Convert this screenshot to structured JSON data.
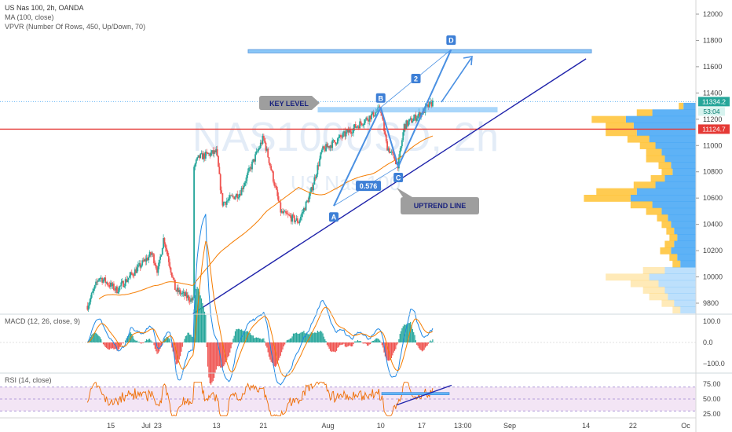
{
  "header": {
    "symbol_line": "US Nas 100, 2h, OANDA",
    "ma_line": "MA (100, close)",
    "vpvr_line": "VPVR (Number Of Rows, 450, Up/Down, 70)",
    "watermark_symbol": "NAS100USD, 2h",
    "watermark_desc": "US Nas 100"
  },
  "colors": {
    "up": "#26a69a",
    "down": "#ef5350",
    "ma": "#f57c00",
    "trend": "#1e22aa",
    "pattern": "#4a90e2",
    "zone": "#64b5f6",
    "red_line": "#e53935",
    "vp_up": "#42a5f5",
    "vp_down": "#ffc233"
  },
  "chart_data": [
    {
      "type": "candlestick",
      "title": "US Nas 100, 2h, OANDA",
      "ylim": [
        9700,
        12100
      ],
      "y_ticks": [
        9800,
        10000,
        10200,
        10400,
        10600,
        10800,
        11000,
        11200,
        11400,
        11600,
        11800,
        12000
      ],
      "x_ticks": [
        "15",
        "23",
        "Jul",
        "13",
        "21",
        "Aug",
        "10",
        "17",
        "13:00",
        "Sep",
        "14",
        "22",
        "Oc"
      ],
      "price_path": [
        {
          "t": "Jun 11",
          "price": 9780
        },
        {
          "t": "Jun 13",
          "price": 10000
        },
        {
          "t": "Jun 16",
          "price": 9900
        },
        {
          "t": "Jun 22",
          "price": 10180
        },
        {
          "t": "Jun 23",
          "price": 10040
        },
        {
          "t": "Jun 24",
          "price": 10300
        },
        {
          "t": "Jun 26",
          "price": 9900
        },
        {
          "t": "Jun 29",
          "price": 9820
        },
        {
          "t": "Jul 2",
          "price": 10330
        },
        {
          "t": "Jul 7",
          "price": 10660
        },
        {
          "t": "Jul 10",
          "price": 10910
        },
        {
          "t": "Jul 13",
          "price": 10950
        },
        {
          "t": "Jul 14",
          "price": 10560
        },
        {
          "t": "Jul 17",
          "price": 10640
        },
        {
          "t": "Jul 21",
          "price": 11060
        },
        {
          "t": "Jul 22",
          "price": 10880
        },
        {
          "t": "Jul 24",
          "price": 10490
        },
        {
          "t": "Jul 27",
          "price": 10420
        },
        {
          "t": "Jul 29",
          "price": 10630
        },
        {
          "t": "Jul 31",
          "price": 10960
        },
        {
          "t": "Aug 5",
          "price": 11120
        },
        {
          "t": "Aug 10",
          "price": 11280
        },
        {
          "t": "Aug 11",
          "price": 11000
        },
        {
          "t": "Aug 13",
          "price": 10850
        },
        {
          "t": "Aug 14",
          "price": 11150
        },
        {
          "t": "Aug 17",
          "price": 11250
        },
        {
          "t": "Aug 19",
          "price": 11334.2
        }
      ],
      "ma_label": "MA (100, close)",
      "current_price": {
        "value": 11334.2,
        "label": "11334.2",
        "countdown": "53:04"
      },
      "red_level": {
        "value": 11124.7,
        "label": "11124.7"
      },
      "zones": [
        {
          "name": "KEY LEVEL",
          "y_low": 11255,
          "y_high": 11290
        },
        {
          "name": "Target D",
          "y_low": 11705,
          "y_high": 11730
        }
      ],
      "trend_line": {
        "label": "UPTREND LINE",
        "from": {
          "t": "Jun 29",
          "price": 9720
        },
        "to": {
          "t": "Sep 14",
          "price": 11660
        }
      },
      "pattern_points": [
        {
          "label": "A",
          "t": "Aug 2",
          "price": 10540
        },
        {
          "label": "B",
          "t": "Aug 10",
          "price": 11290
        },
        {
          "label": "C",
          "t": "Aug 13",
          "price": 10840
        },
        {
          "label": "D",
          "t": "Aug 22",
          "price": 11730
        }
      ],
      "ratios": [
        {
          "label": "0.576"
        },
        {
          "label": "2"
        }
      ],
      "volume_profile": {
        "label": "VPVR (Number Of Rows, 450, Up/Down, 70)",
        "rows": [
          {
            "price": 11300,
            "up": 0.08,
            "down": 0.03
          },
          {
            "price": 11250,
            "up": 0.28,
            "down": 0.1
          },
          {
            "price": 11200,
            "up": 0.45,
            "down": 0.22
          },
          {
            "price": 11150,
            "up": 0.4,
            "down": 0.18
          },
          {
            "price": 11100,
            "up": 0.38,
            "down": 0.2
          },
          {
            "price": 11050,
            "up": 0.3,
            "down": 0.14
          },
          {
            "price": 11000,
            "up": 0.26,
            "down": 0.1
          },
          {
            "price": 10950,
            "up": 0.22,
            "down": 0.1
          },
          {
            "price": 10900,
            "up": 0.2,
            "down": 0.12
          },
          {
            "price": 10850,
            "up": 0.16,
            "down": 0.08
          },
          {
            "price": 10800,
            "up": 0.15,
            "down": 0.07
          },
          {
            "price": 10750,
            "up": 0.2,
            "down": 0.09
          },
          {
            "price": 10700,
            "up": 0.26,
            "down": 0.14
          },
          {
            "price": 10650,
            "up": 0.38,
            "down": 0.26
          },
          {
            "price": 10600,
            "up": 0.42,
            "down": 0.3
          },
          {
            "price": 10550,
            "up": 0.28,
            "down": 0.14
          },
          {
            "price": 10500,
            "up": 0.22,
            "down": 0.1
          },
          {
            "price": 10450,
            "up": 0.18,
            "down": 0.07
          },
          {
            "price": 10400,
            "up": 0.16,
            "down": 0.06
          },
          {
            "price": 10350,
            "up": 0.14,
            "down": 0.05
          },
          {
            "price": 10300,
            "up": 0.12,
            "down": 0.05
          },
          {
            "price": 10250,
            "up": 0.14,
            "down": 0.06
          },
          {
            "price": 10200,
            "up": 0.16,
            "down": 0.07
          },
          {
            "price": 10150,
            "up": 0.12,
            "down": 0.05
          },
          {
            "price": 10100,
            "up": 0.1,
            "down": 0.05
          },
          {
            "price": 10050,
            "up": 0.2,
            "down": 0.14
          },
          {
            "price": 10000,
            "up": 0.3,
            "down": 0.28
          },
          {
            "price": 9950,
            "up": 0.24,
            "down": 0.18
          },
          {
            "price": 9900,
            "up": 0.2,
            "down": 0.14
          },
          {
            "price": 9850,
            "up": 0.18,
            "down": 0.12
          },
          {
            "price": 9800,
            "up": 0.14,
            "down": 0.08
          },
          {
            "price": 9750,
            "up": 0.1,
            "down": 0.05
          }
        ]
      }
    },
    {
      "type": "macd",
      "title": "MACD (12, 26, close, 9)",
      "ylim": [
        -110,
        110
      ],
      "y_ticks": [
        100,
        0,
        -100
      ],
      "y_tick_labels": [
        "100.0",
        "0.0",
        "−100.0"
      ]
    },
    {
      "type": "line",
      "title": "RSI (14, close)",
      "ylim": [
        20,
        80
      ],
      "y_ticks": [
        75,
        50,
        25
      ],
      "y_tick_labels": [
        "75.00",
        "50.00",
        "25.00"
      ],
      "band": [
        30,
        70
      ]
    }
  ]
}
